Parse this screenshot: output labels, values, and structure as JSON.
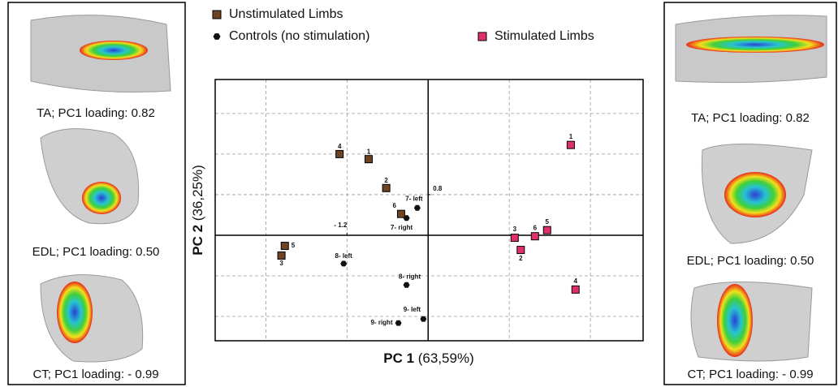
{
  "chart_data": {
    "type": "scatter",
    "x_label_bold": "PC 1",
    "x_label_rest": "(63,59%)",
    "y_label_bold": "PC 2",
    "y_label_rest": "(36,25%)",
    "xlim": [
      -3.15,
      3.18
    ],
    "ylim": [
      -2.08,
      3.07
    ],
    "xticks": [
      {
        "value": -1.2,
        "label": "- 1.2"
      }
    ],
    "yticks": [
      0.8
    ],
    "xgrid": [
      -2.4,
      -1.2,
      1.2,
      2.4
    ],
    "ygrid": [
      -1.6,
      -0.8,
      0.8,
      1.6,
      2.4
    ],
    "series": [
      {
        "name": "Unstimulated Limbs",
        "color": "#6e4424",
        "marker": "square",
        "labels": [
          "4",
          "1",
          "2",
          "6",
          "5",
          "3"
        ],
        "x": [
          -1.31,
          -0.88,
          -0.62,
          -0.4,
          -2.12,
          -2.17
        ],
        "values": [
          1.6,
          1.5,
          0.93,
          0.42,
          -0.21,
          -0.4
        ]
      },
      {
        "name": "Controls (no stimulation)",
        "color": "#111111",
        "marker": "hexagon",
        "labels": [
          "7- left",
          "7- right",
          "8- left",
          "8- right",
          "9- left",
          "9- right"
        ],
        "x": [
          -0.16,
          -0.32,
          -1.25,
          -0.32,
          -0.07,
          -0.44
        ],
        "values": [
          0.54,
          0.34,
          -0.56,
          -0.98,
          -1.65,
          -1.73
        ]
      },
      {
        "name": "Stimulated Limbs",
        "color": "#e0306a",
        "marker": "square",
        "labels": [
          "1",
          "3",
          "6",
          "5",
          "2",
          "4"
        ],
        "x": [
          2.11,
          1.28,
          1.58,
          1.76,
          1.37,
          2.18
        ],
        "values": [
          1.78,
          -0.05,
          -0.02,
          0.1,
          -0.29,
          -1.07
        ]
      }
    ]
  },
  "side_panels": {
    "left": [
      "TA; PC1 loading: 0.82",
      "EDL; PC1 loading: 0.50",
      "CT; PC1 loading: - 0.99"
    ],
    "right": [
      "TA; PC1 loading: 0.82",
      "EDL; PC1 loading: 0.50",
      "CT; PC1 loading: - 0.99"
    ]
  }
}
